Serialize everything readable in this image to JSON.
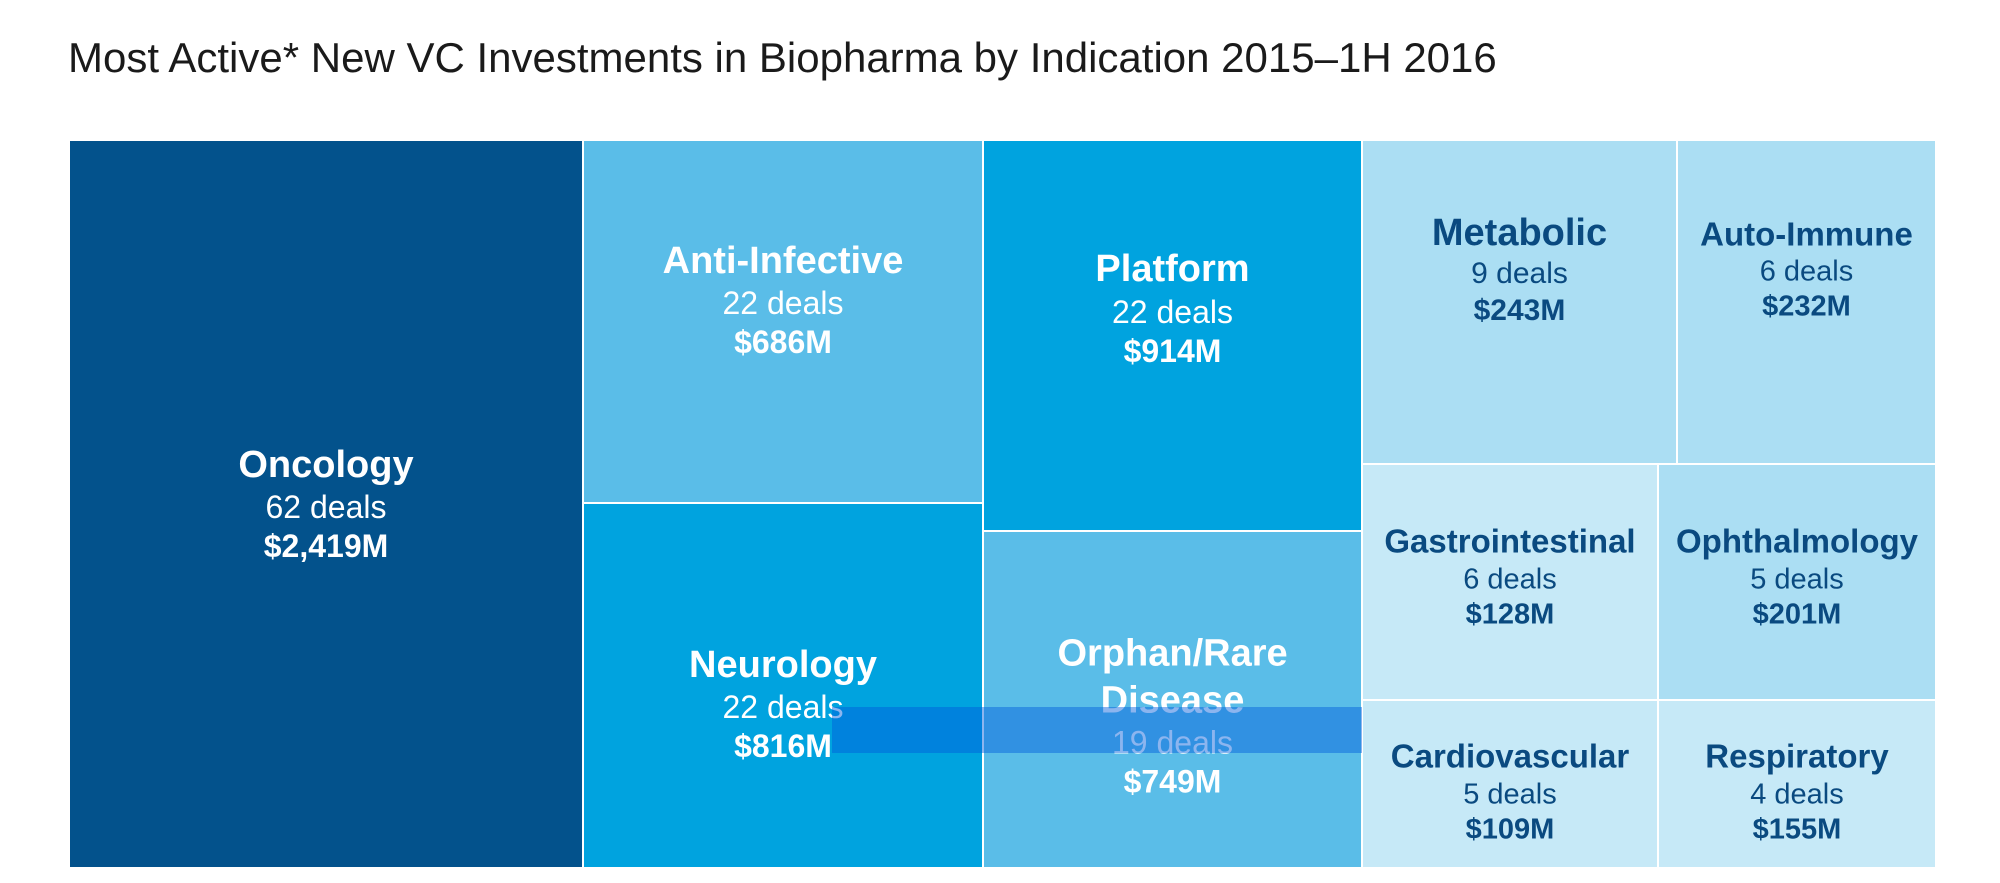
{
  "title": "Most Active* New VC Investments in Biopharma by Indication 2015–1H 2016",
  "chart_data": {
    "type": "treemap",
    "title": "Most Active* New VC Investments in Biopharma by Indication 2015–1H 2016",
    "items": [
      {
        "name": "Oncology",
        "deals": "62 deals",
        "amount": "$2,419M",
        "deals_value": 62,
        "amount_musd": 2419,
        "color": "#03528c",
        "text_color": "#ffffff"
      },
      {
        "name": "Anti-Infective",
        "deals": "22 deals",
        "amount": "$686M",
        "deals_value": 22,
        "amount_musd": 686,
        "color": "#5abde8",
        "text_color": "#ffffff"
      },
      {
        "name": "Neurology",
        "deals": "22 deals",
        "amount": "$816M",
        "deals_value": 22,
        "amount_musd": 816,
        "color": "#00a3df",
        "text_color": "#ffffff"
      },
      {
        "name": "Platform",
        "deals": "22 deals",
        "amount": "$914M",
        "deals_value": 22,
        "amount_musd": 914,
        "color": "#00a3df",
        "text_color": "#ffffff"
      },
      {
        "name": "Orphan/Rare Disease",
        "deals": "19 deals",
        "amount": "$749M",
        "deals_value": 19,
        "amount_musd": 749,
        "color": "#5abde8",
        "text_color": "#ffffff"
      },
      {
        "name": "Metabolic",
        "deals": "9 deals",
        "amount": "$243M",
        "deals_value": 9,
        "amount_musd": 243,
        "color": "#abdef3",
        "text_color": "#0a4a80"
      },
      {
        "name": "Auto-Immune",
        "deals": "6 deals",
        "amount": "$232M",
        "deals_value": 6,
        "amount_musd": 232,
        "color": "#abdef3",
        "text_color": "#0a4a80"
      },
      {
        "name": "Gastrointestinal",
        "deals": "6 deals",
        "amount": "$128M",
        "deals_value": 6,
        "amount_musd": 128,
        "color": "#c6e9f7",
        "text_color": "#0a4a80"
      },
      {
        "name": "Ophthalmology",
        "deals": "5 deals",
        "amount": "$201M",
        "deals_value": 5,
        "amount_musd": 201,
        "color": "#abdef3",
        "text_color": "#0a4a80"
      },
      {
        "name": "Cardiovascular",
        "deals": "5 deals",
        "amount": "$109M",
        "deals_value": 5,
        "amount_musd": 109,
        "color": "#c6e9f7",
        "text_color": "#0a4a80"
      },
      {
        "name": "Respiratory",
        "deals": "4 deals",
        "amount": "$155M",
        "deals_value": 4,
        "amount_musd": 155,
        "color": "#c6e9f7",
        "text_color": "#0a4a80"
      }
    ]
  }
}
